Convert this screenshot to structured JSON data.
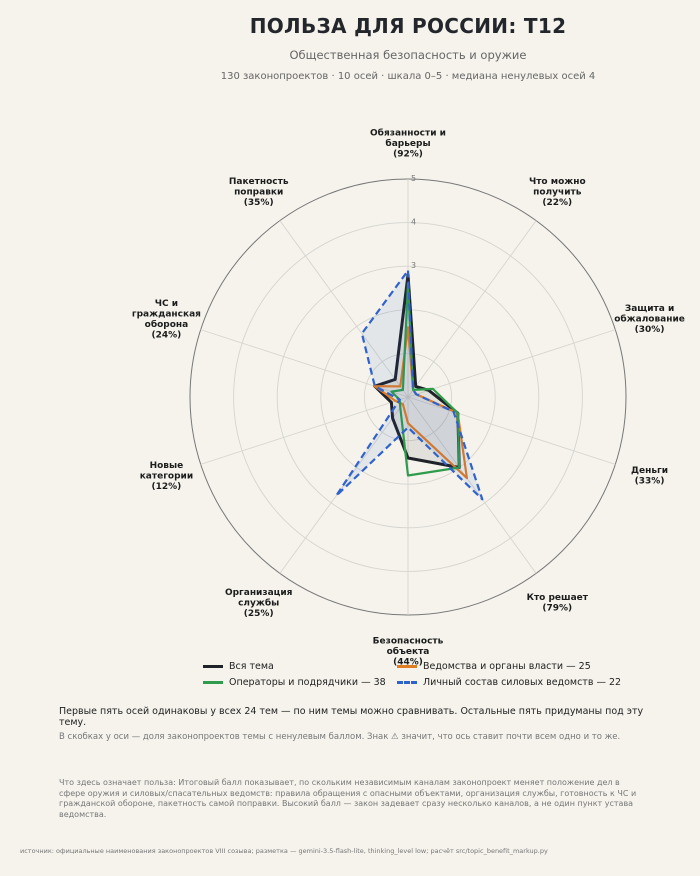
{
  "header": {
    "title": "ПОЛЬЗА ДЛЯ РОССИИ: Т12",
    "subtitle": "Общественная безопасность и оружие",
    "meta": "130 законопроектов · 10 осей · шкала 0–5 · медиана ненулевых осей 4"
  },
  "chart_data": {
    "type": "radar",
    "scale": [
      0,
      5
    ],
    "ring_labels": [
      "3",
      "4",
      "5"
    ],
    "axes": [
      {
        "name": "Обязанности и барьеры",
        "lines": [
          "Обязанности и",
          "барьеры"
        ],
        "share": "(92%)"
      },
      {
        "name": "Что можно получить",
        "lines": [
          "Что можно",
          "получить"
        ],
        "share": "(22%)"
      },
      {
        "name": "Защита и обжалование",
        "lines": [
          "Защита и",
          "обжалование"
        ],
        "share": "(30%)"
      },
      {
        "name": "Деньги",
        "lines": [
          "Деньги"
        ],
        "share": "(33%)"
      },
      {
        "name": "Кто решает",
        "lines": [
          "Кто решает"
        ],
        "share": "(79%)"
      },
      {
        "name": "Безопасность объекта",
        "lines": [
          "Безопасность",
          "объекта"
        ],
        "share": "(44%)"
      },
      {
        "name": "Организация службы",
        "lines": [
          "Организация",
          "службы"
        ],
        "share": "(25%)"
      },
      {
        "name": "Новые категории",
        "lines": [
          "Новые",
          "категории"
        ],
        "share": "(12%)"
      },
      {
        "name": "ЧС и гражданская оборона",
        "lines": [
          "ЧС и",
          "гражданская",
          "оборона"
        ],
        "share": "(24%)"
      },
      {
        "name": "Пакетность поправки",
        "lines": [
          "Пакетность",
          "поправки"
        ],
        "share": "(35%)"
      }
    ],
    "series": [
      {
        "name": "Вся тема",
        "color": "#1f2229",
        "style": "solid",
        "fill": true,
        "values": [
          2.8,
          0.3,
          0.5,
          1.2,
          2.0,
          1.4,
          0.6,
          0.4,
          0.8,
          0.5
        ]
      },
      {
        "name": "Ведомства и органы власти — 25",
        "color": "#e07c24",
        "style": "solid",
        "fill": false,
        "values": [
          1.6,
          0.2,
          0.2,
          1.2,
          2.3,
          0.6,
          0.2,
          0.3,
          0.8,
          0.3
        ]
      },
      {
        "name": "Операторы и подрядчики — 38",
        "color": "#2e9c4c",
        "style": "solid",
        "fill": false,
        "values": [
          2.6,
          0.2,
          0.6,
          1.2,
          2.0,
          1.8,
          0.3,
          0.2,
          0.4,
          0.2
        ]
      },
      {
        "name": "Личный состав силовых ведомств — 22",
        "color": "#2f62cc",
        "style": "dashed",
        "fill": true,
        "values": [
          2.9,
          0.2,
          0.2,
          1.1,
          2.9,
          0.7,
          2.8,
          0.2,
          0.8,
          1.8
        ]
      }
    ]
  },
  "notes": {
    "main": "Первые пять осей одинаковы у всех 24 тем — по ним темы можно сравнивать. Остальные пять придуманы под эту тему.",
    "parentheses": "В скобках у оси — доля законопроектов темы с ненулевым баллом. Знак ⚠ значит, что ось ставит почти всем одно и то же.",
    "benefit": "Что здесь означает польза: Итоговый балл показывает, по скольким независимым каналам законопроект меняет положение дел в сфере оружия и силовых/спасательных ведомств: правила обращения с опасными объектами, организация службы, готовность к ЧС и гражданской обороне, пакетность самой поправки. Высокий балл — закон задевает сразу несколько каналов, а не один пункт устава ведомства."
  },
  "source": "источник: официальные наименования законопроектов VIII созыва; разметка — gemini-3.5-flash-lite, thinking_level low; расчёт src/topic_benefit_markup.py"
}
